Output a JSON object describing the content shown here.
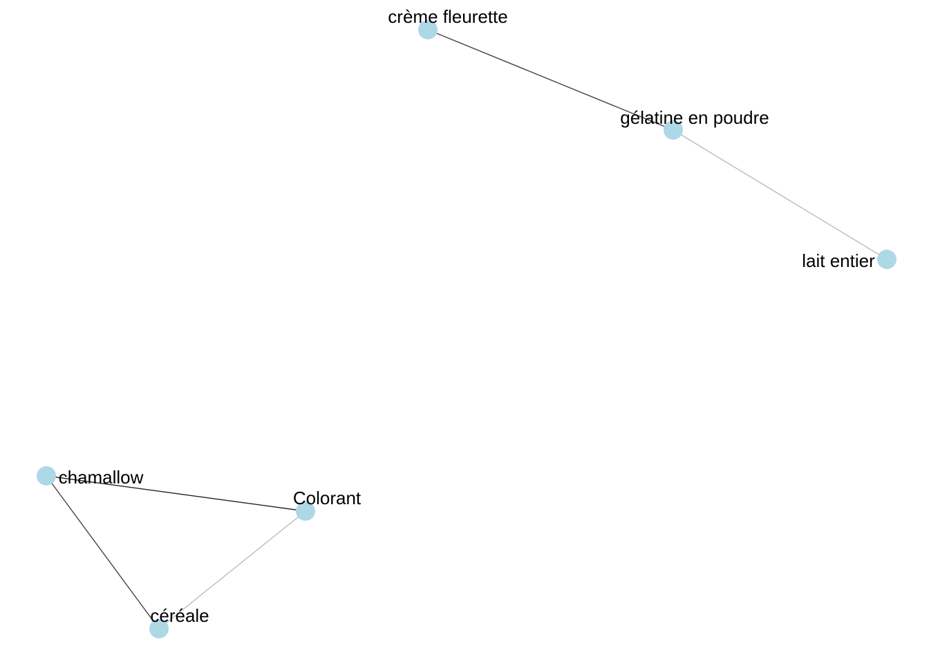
{
  "graph": {
    "node_color": "#add8e6",
    "label_color": "#000000",
    "nodes": [
      {
        "id": "creme",
        "label": "crème fleurette"
      },
      {
        "id": "gelatine",
        "label": "gélatine en poudre"
      },
      {
        "id": "lait",
        "label": "lait entier"
      },
      {
        "id": "chamallow",
        "label": "chamallow"
      },
      {
        "id": "colorant",
        "label": "Colorant"
      },
      {
        "id": "cereale",
        "label": "céréale"
      }
    ],
    "edges": [
      {
        "source": "creme",
        "target": "gelatine",
        "color": "#444444"
      },
      {
        "source": "gelatine",
        "target": "lait",
        "color": "#bbbbbb"
      },
      {
        "source": "chamallow",
        "target": "colorant",
        "color": "#222222"
      },
      {
        "source": "chamallow",
        "target": "cereale",
        "color": "#444444"
      },
      {
        "source": "colorant",
        "target": "cereale",
        "color": "#bbbbbb"
      }
    ]
  }
}
